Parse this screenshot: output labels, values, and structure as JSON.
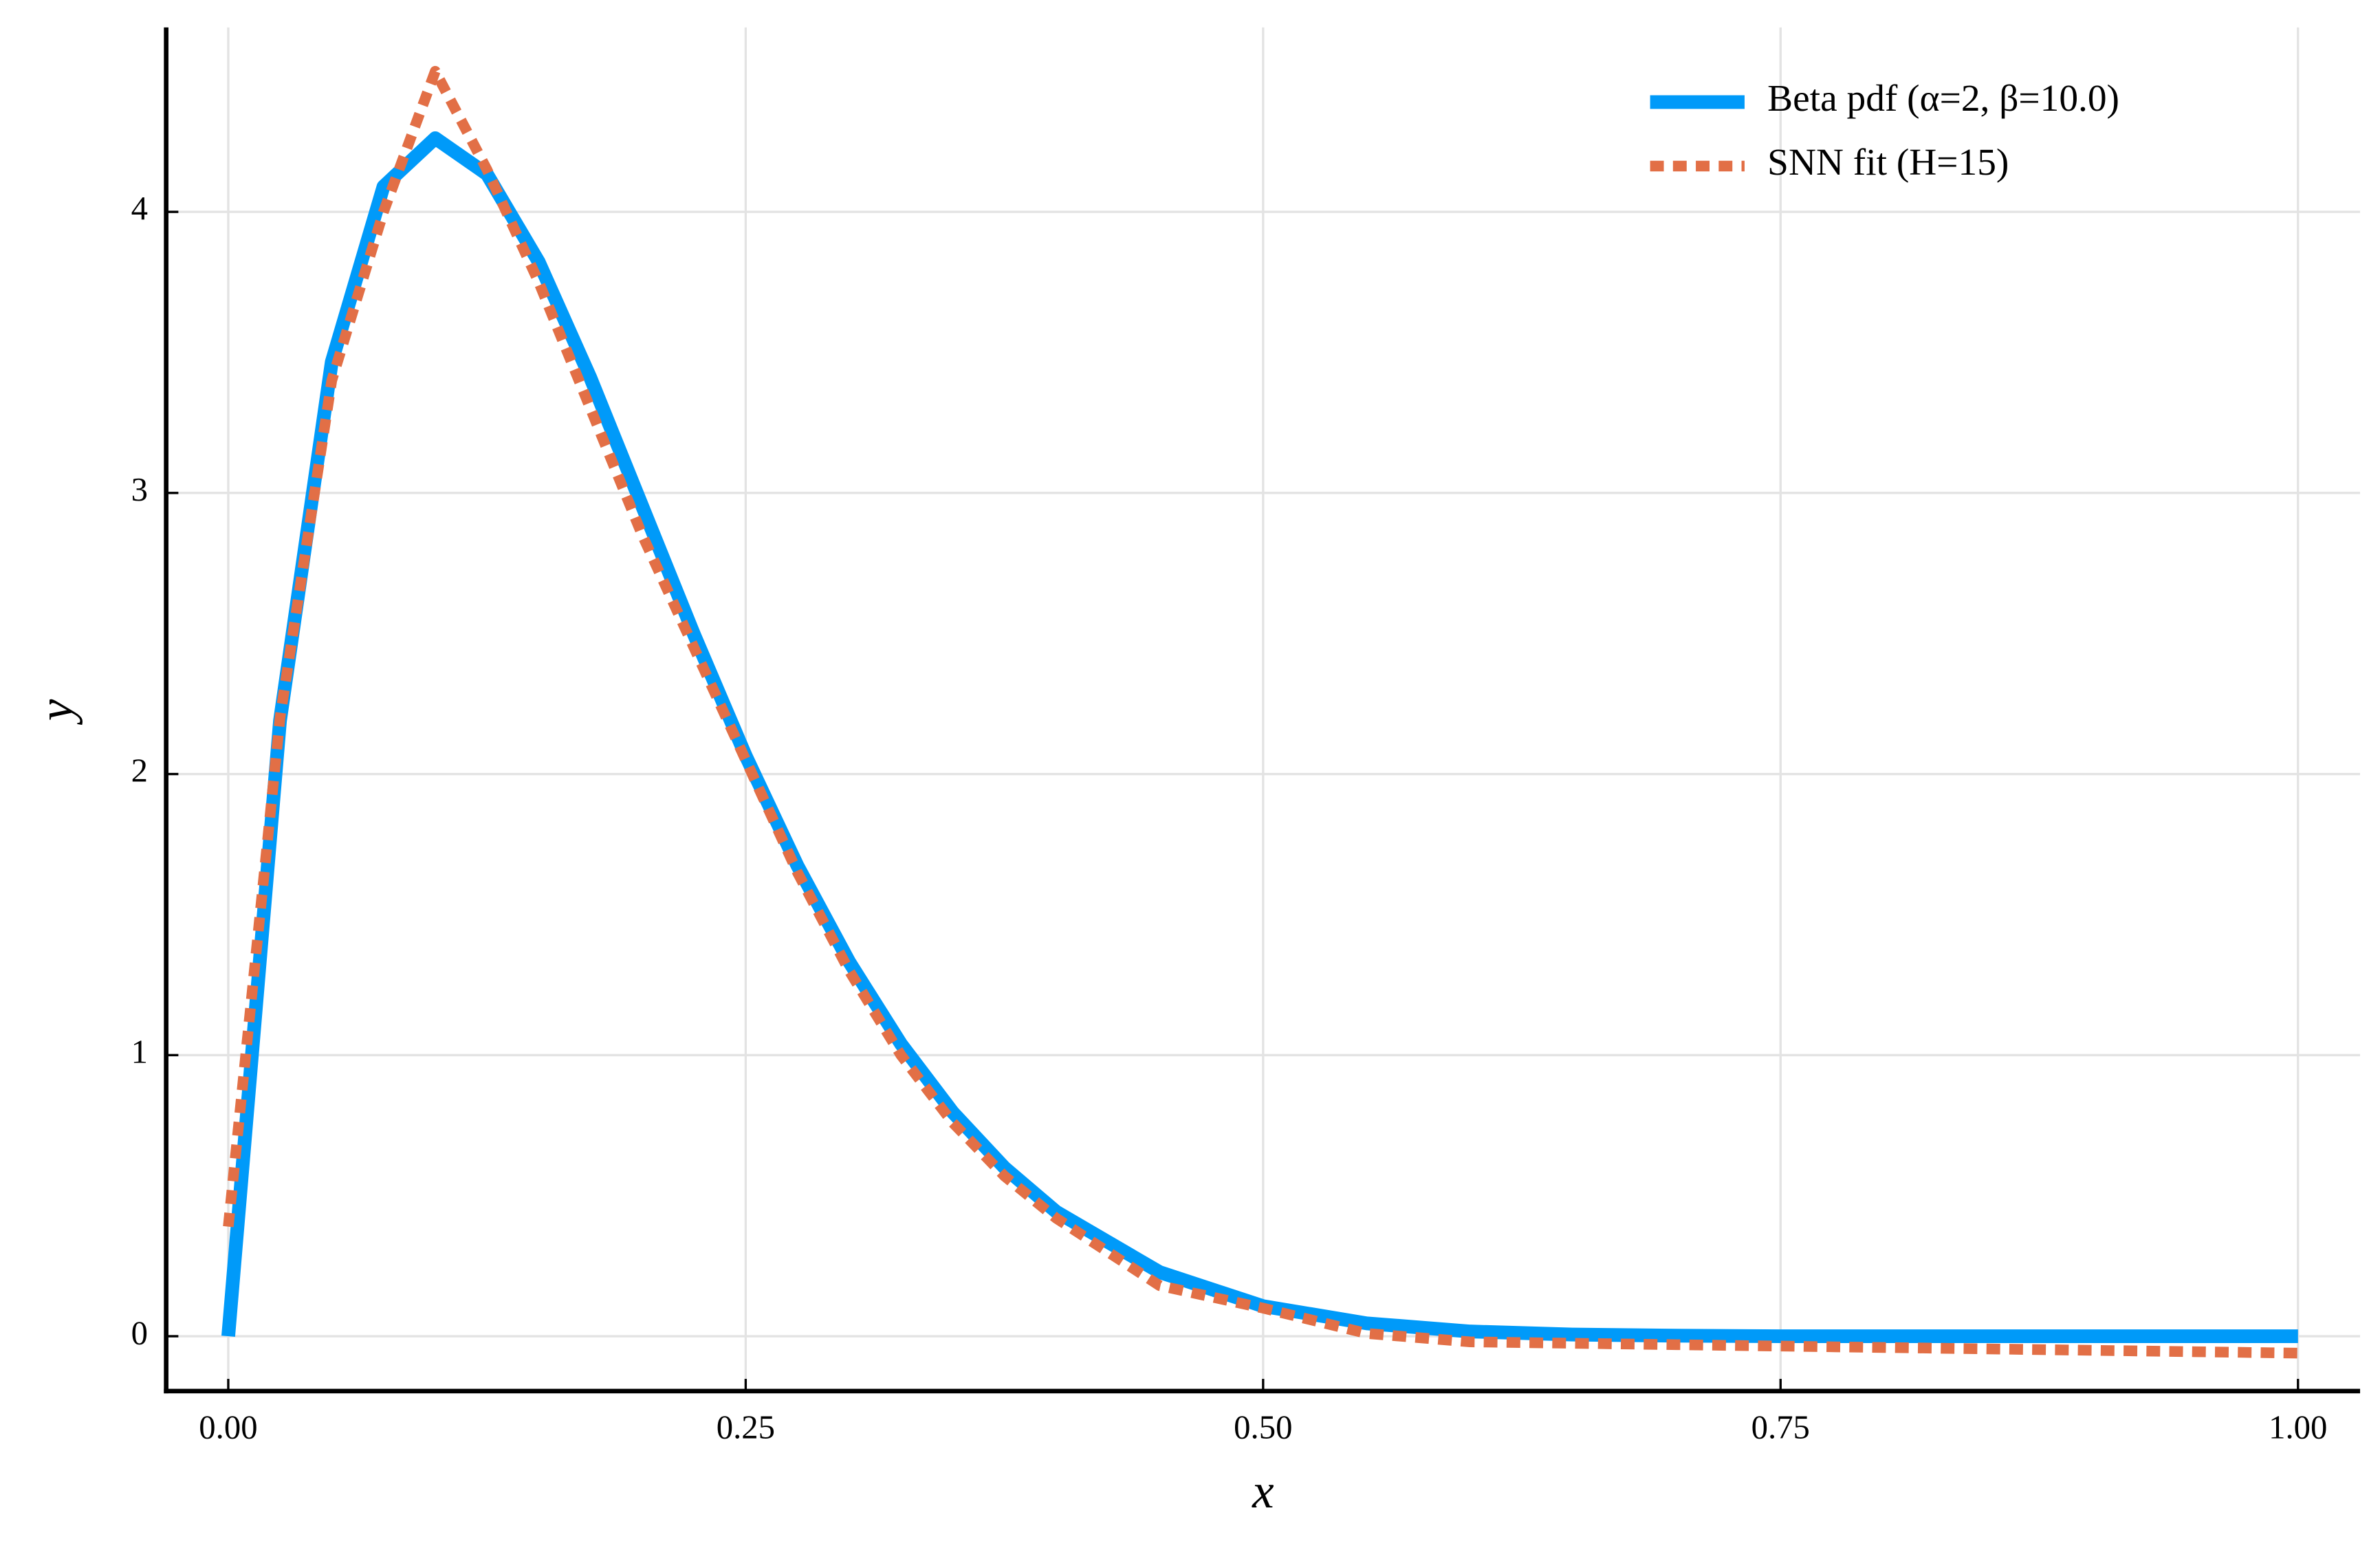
{
  "chart_data": {
    "type": "line",
    "x_label": "x",
    "y_label": "y",
    "x": [
      0,
      0.025,
      0.05,
      0.075,
      0.1,
      0.125,
      0.15,
      0.175,
      0.2,
      0.225,
      0.25,
      0.275,
      0.3,
      0.325,
      0.35,
      0.375,
      0.4,
      0.45,
      0.5,
      0.55,
      0.6,
      0.65,
      0.7,
      0.75,
      0.8,
      0.85,
      0.9,
      0.95,
      1.0
    ],
    "series": [
      {
        "name": "Beta pdf (α=2, β=10.0)",
        "color": "#009af9",
        "style": "solid",
        "values": [
          0,
          2.19,
          3.466,
          4.09,
          4.262,
          4.134,
          3.822,
          3.409,
          2.953,
          2.497,
          2.065,
          1.674,
          1.332,
          1.04,
          0.797,
          0.6,
          0.443,
          0.228,
          0.107,
          0.046,
          0.017,
          0.006,
          0.002,
          0,
          0,
          0,
          0,
          0,
          0
        ]
      },
      {
        "name": "SNN fit (H=15)",
        "color": "#e26f46",
        "style": "dotted",
        "values": [
          0.39,
          2.2,
          3.4,
          4.0,
          4.5,
          4.15,
          3.75,
          3.3,
          2.85,
          2.45,
          2.05,
          1.65,
          1.3,
          1.0,
          0.76,
          0.57,
          0.42,
          0.18,
          0.1,
          0.01,
          -0.02,
          -0.025,
          -0.03,
          -0.035,
          -0.04,
          -0.045,
          -0.05,
          -0.055,
          -0.06
        ]
      }
    ],
    "xlim": [
      -0.03,
      1.03
    ],
    "ylim": [
      -0.195,
      4.656
    ],
    "xticks": [
      {
        "value": 0,
        "label": "0.00"
      },
      0.25,
      {
        "value": 0.5,
        "label": "0.50"
      },
      0.75,
      {
        "value": 1,
        "label": "1.00"
      }
    ],
    "yticks": [
      0,
      1,
      2,
      3,
      4
    ],
    "grid": true,
    "legend": "top-right"
  }
}
